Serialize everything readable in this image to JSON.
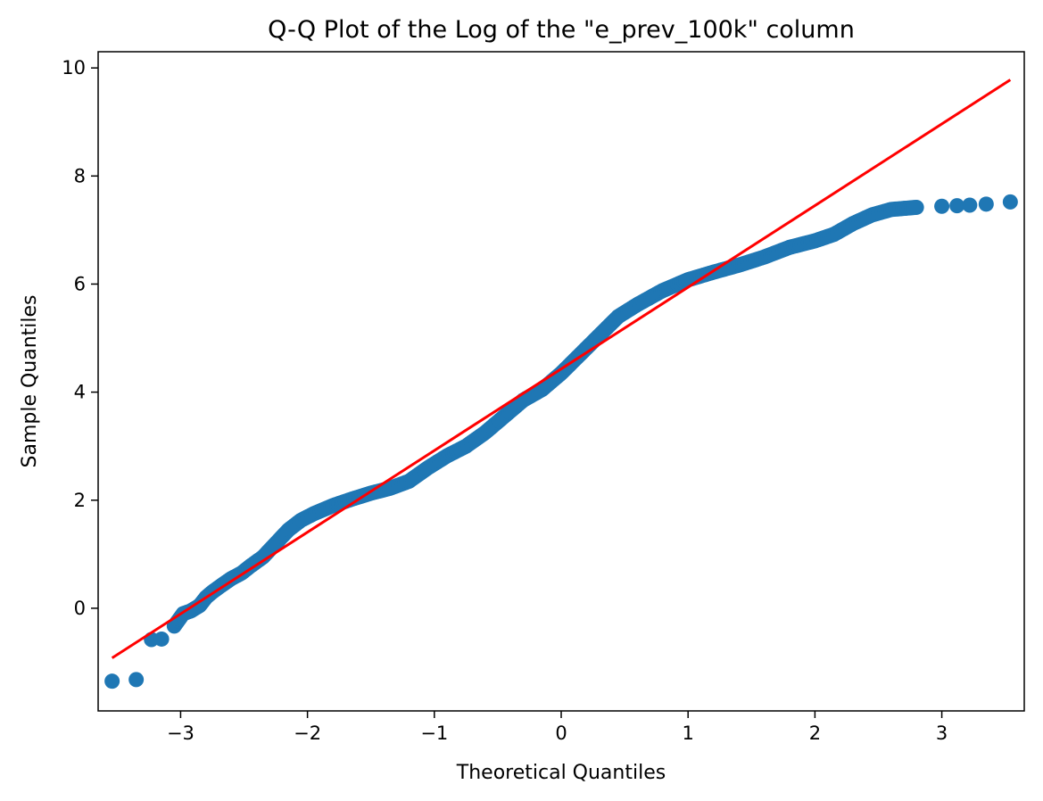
{
  "chart_data": {
    "type": "scatter",
    "title": "Q-Q Plot of the Log of the \"e_prev_100k\" column",
    "xlabel": "Theoretical Quantiles",
    "ylabel": "Sample Quantiles",
    "xlim": [
      -3.65,
      3.65
    ],
    "ylim": [
      -1.9,
      10.3
    ],
    "xticks": [
      -3,
      -2,
      -1,
      0,
      1,
      2,
      3
    ],
    "xtick_labels": [
      "−3",
      "−2",
      "−1",
      "0",
      "1",
      "2",
      "3"
    ],
    "yticks": [
      0,
      2,
      4,
      6,
      8,
      10
    ],
    "ytick_labels": [
      "0",
      "2",
      "4",
      "6",
      "8",
      "10"
    ],
    "grid": false,
    "legend": "none",
    "colors": {
      "points": "#1f77b4",
      "reference_line": "#ff0000"
    },
    "series": [
      {
        "role": "sample quantiles",
        "x": [
          -3.54,
          -3.35,
          -3.23,
          -3.15,
          -3.05,
          -2.98,
          -2.92,
          -2.85,
          -2.8,
          -2.75,
          -2.68,
          -2.6,
          -2.52,
          -2.45,
          -2.35,
          -2.25,
          -2.15,
          -2.05,
          -1.95,
          -1.8,
          -1.65,
          -1.5,
          -1.35,
          -1.2,
          -1.05,
          -0.9,
          -0.75,
          -0.6,
          -0.45,
          -0.3,
          -0.15,
          0.0,
          0.15,
          0.3,
          0.45,
          0.6,
          0.8,
          1.0,
          1.2,
          1.4,
          1.6,
          1.8,
          2.0,
          2.15,
          2.3,
          2.45,
          2.6,
          2.8,
          3.0,
          3.12,
          3.22,
          3.35,
          3.54
        ],
        "y": [
          -1.35,
          -1.32,
          -0.58,
          -0.57,
          -0.33,
          -0.1,
          -0.05,
          0.05,
          0.2,
          0.3,
          0.42,
          0.55,
          0.65,
          0.78,
          0.95,
          1.2,
          1.45,
          1.63,
          1.75,
          1.9,
          2.02,
          2.13,
          2.22,
          2.35,
          2.6,
          2.82,
          3.0,
          3.25,
          3.55,
          3.85,
          4.05,
          4.35,
          4.7,
          5.05,
          5.4,
          5.62,
          5.88,
          6.08,
          6.22,
          6.35,
          6.5,
          6.68,
          6.8,
          6.92,
          7.12,
          7.28,
          7.38,
          7.42,
          7.44,
          7.45,
          7.46,
          7.48,
          7.52
        ]
      },
      {
        "role": "reference line",
        "x": [
          -3.54,
          3.54
        ],
        "y": [
          -0.92,
          9.78
        ]
      }
    ]
  }
}
